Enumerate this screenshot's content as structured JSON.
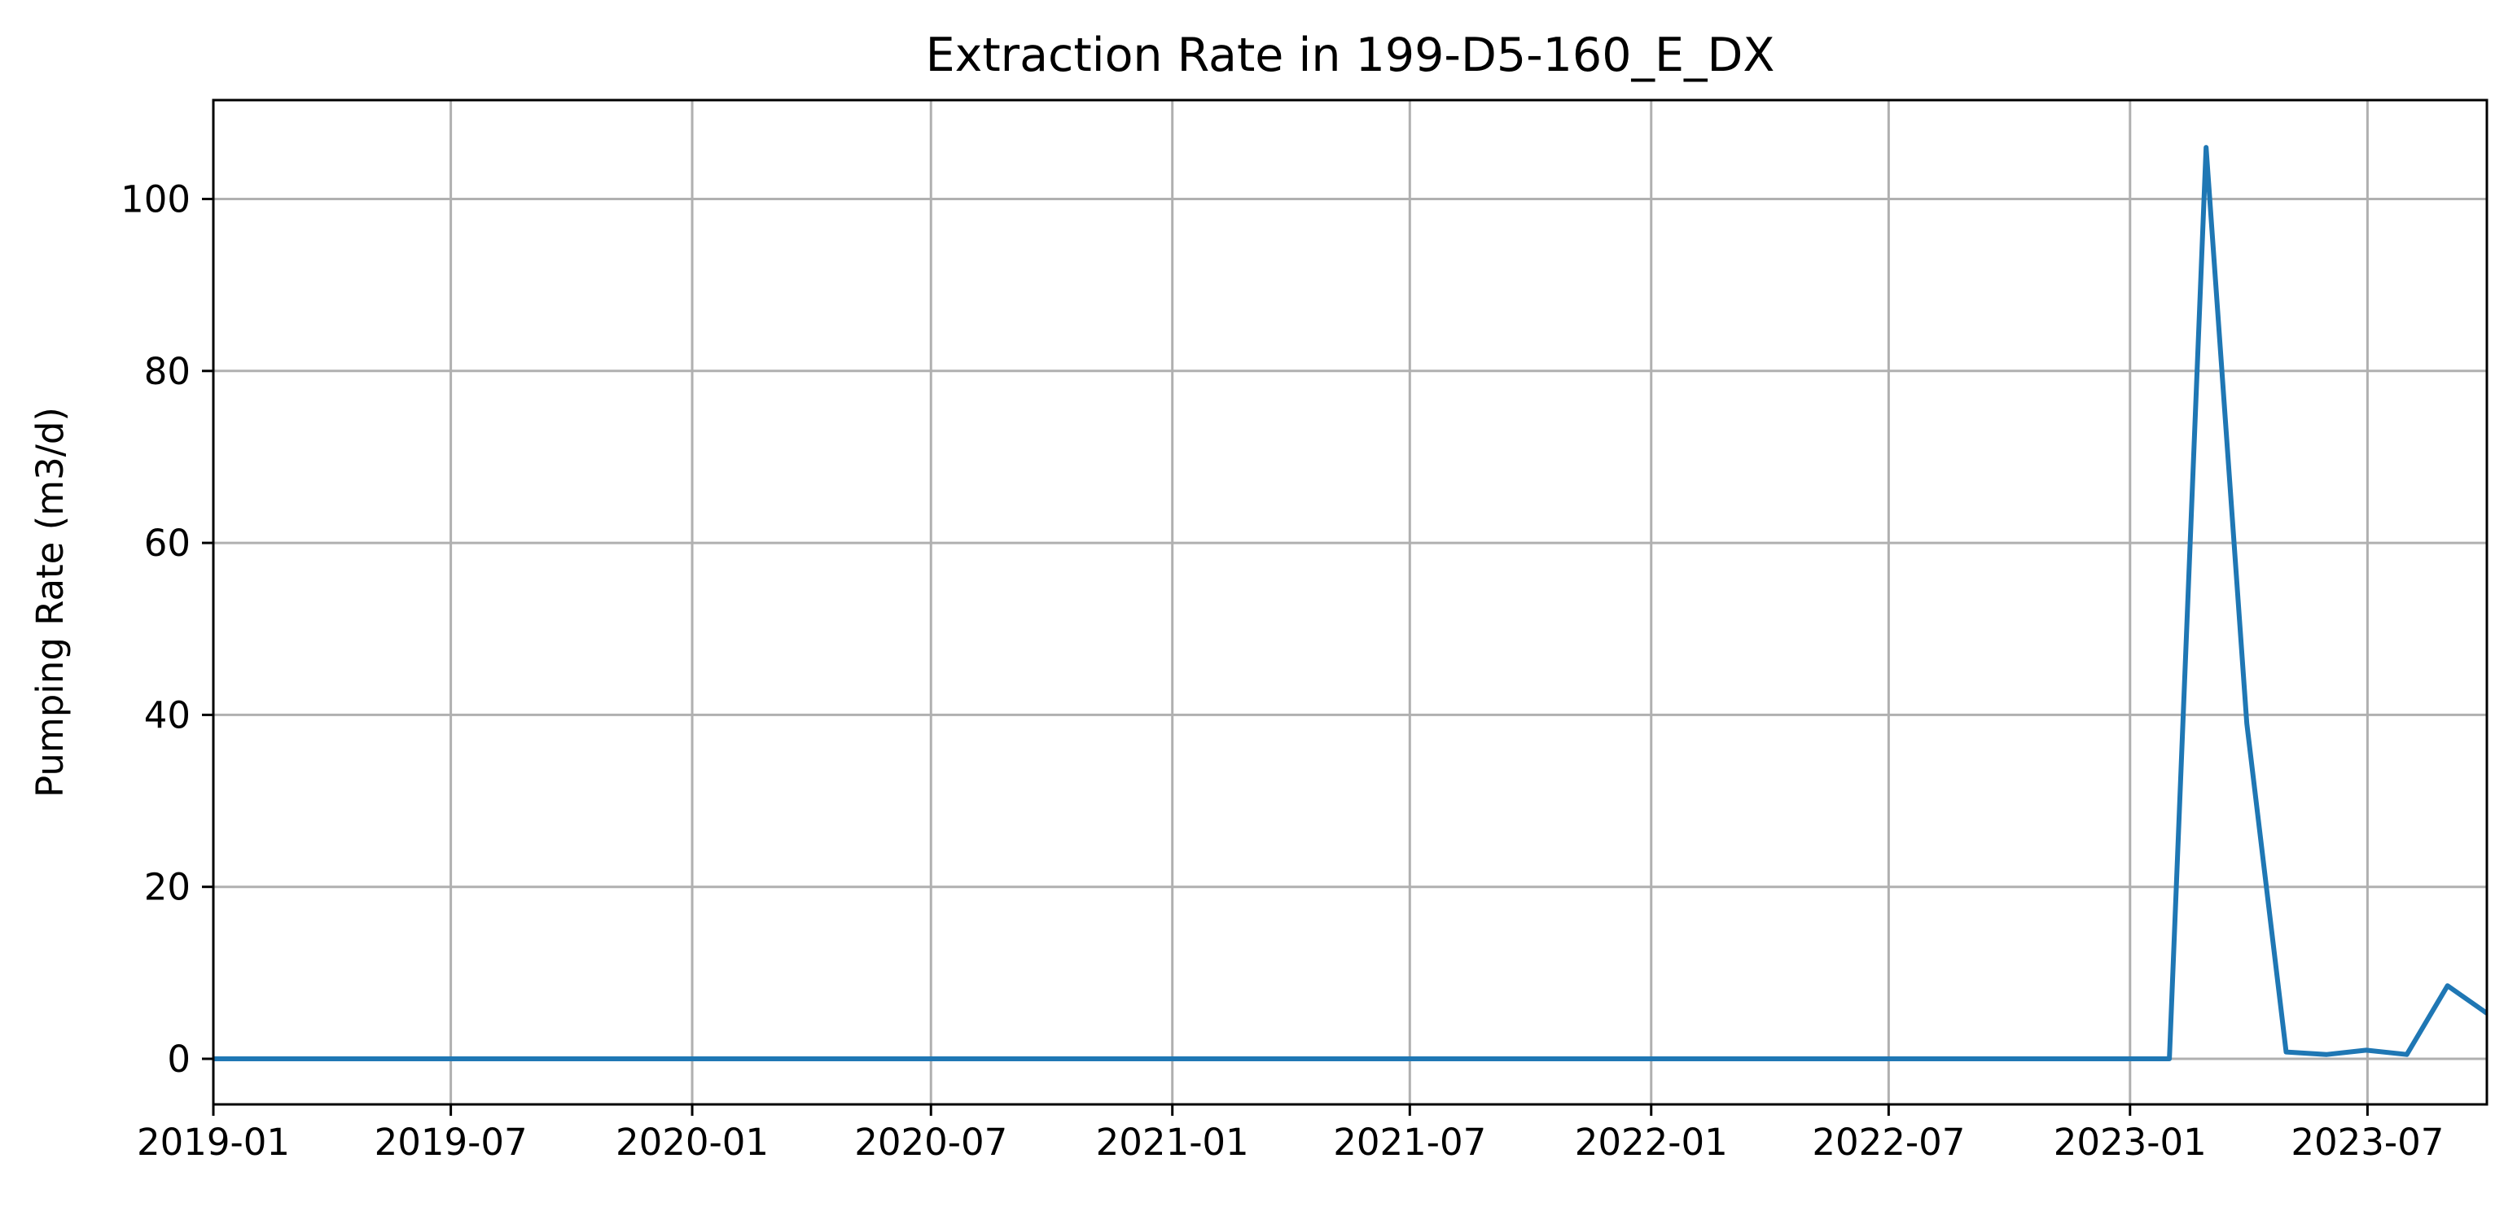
{
  "chart_data": {
    "type": "line",
    "title": "Extraction Rate in 199-D5-160_E_DX",
    "xlabel": "",
    "ylabel": "Pumping Rate (m3/d)",
    "x_axis_type": "date",
    "xlim": [
      "2019-01-01",
      "2023-09-30"
    ],
    "ylim": [
      -5.3,
      111.5
    ],
    "x_ticks": [
      "2019-01",
      "2019-07",
      "2020-01",
      "2020-07",
      "2021-01",
      "2021-07",
      "2022-01",
      "2022-07",
      "2023-01",
      "2023-07"
    ],
    "y_ticks": [
      0,
      20,
      40,
      60,
      80,
      100
    ],
    "grid": true,
    "legend": "none",
    "series": [
      {
        "color": "#1f77b4",
        "x": [
          "2019-01-01",
          "2023-01-31",
          "2023-02-28",
          "2023-03-31",
          "2023-04-30",
          "2023-05-31",
          "2023-06-30",
          "2023-07-31",
          "2023-08-31",
          "2023-09-30"
        ],
        "y": [
          0,
          0,
          106,
          39,
          0.8,
          0.5,
          1,
          0.5,
          8.5,
          5.3
        ]
      }
    ]
  }
}
